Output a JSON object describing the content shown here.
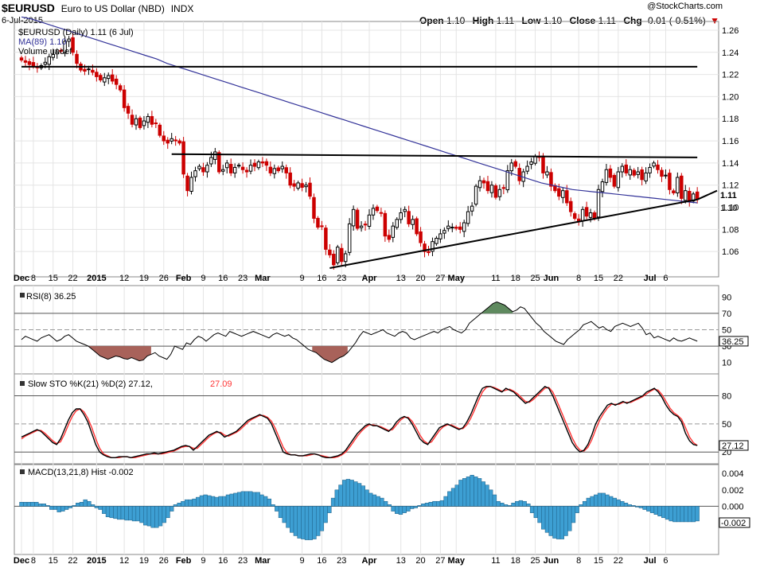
{
  "header": {
    "ticker": "$EURUSD",
    "description": "Euro to US Dollar (NBD)",
    "exchange": "INDX",
    "date": "6-Jul-2015",
    "brand": "@StockCharts.com",
    "open_label": "Open",
    "open_value": "1.10",
    "high_label": "High",
    "high_value": "1.11",
    "low_label": "Low",
    "low_value": "1.10",
    "close_label": "Close",
    "close_value": "1.11",
    "chg_label": "Chg",
    "chg_value": "-0.01 (-0.51%)",
    "chg_arrow": "▼"
  },
  "colors": {
    "up_candle": "#000000",
    "down_candle": "#cc0000",
    "ma_line": "#333399",
    "rsi_high_fill": "#5f8a5f",
    "rsi_low_fill": "#a8625a",
    "sto_d_line": "#ff3333",
    "macd_hist": "#3d9fd3"
  },
  "chart_data": [
    {
      "panel": "price",
      "type": "candlestick",
      "legend": [
        "$EURUSD (Daily) 1.11 (6 Jul)",
        "MA(89) 1.10",
        "Volume undef"
      ],
      "ylim": [
        1.04,
        1.265
      ],
      "yticks": [
        "1.26",
        "1.24",
        "1.22",
        "1.20",
        "1.18",
        "1.16",
        "1.14",
        "1.12",
        "1.10",
        "1.08",
        "1.06"
      ],
      "last_labels": [
        "1.11",
        "1.10"
      ],
      "close": [
        1.233,
        1.231,
        1.229,
        1.228,
        1.226,
        1.228,
        1.231,
        1.236,
        1.238,
        1.24,
        1.241,
        1.25,
        1.252,
        1.24,
        1.23,
        1.224,
        1.223,
        1.225,
        1.222,
        1.218,
        1.215,
        1.217,
        1.219,
        1.214,
        1.211,
        1.206,
        1.19,
        1.185,
        1.175,
        1.18,
        1.172,
        1.178,
        1.182,
        1.175,
        1.176,
        1.165,
        1.16,
        1.158,
        1.162,
        1.16,
        1.158,
        1.13,
        1.115,
        1.127,
        1.133,
        1.137,
        1.132,
        1.138,
        1.145,
        1.15,
        1.132,
        1.134,
        1.14,
        1.131,
        1.136,
        1.138,
        1.134,
        1.132,
        1.138,
        1.137,
        1.141,
        1.14,
        1.138,
        1.131,
        1.135,
        1.133,
        1.137,
        1.131,
        1.12,
        1.119,
        1.122,
        1.118,
        1.12,
        1.11,
        1.09,
        1.082,
        1.083,
        1.062,
        1.057,
        1.048,
        1.064,
        1.051,
        1.058,
        1.085,
        1.098,
        1.081,
        1.083,
        1.084,
        1.093,
        1.099,
        1.097,
        1.095,
        1.074,
        1.071,
        1.083,
        1.089,
        1.095,
        1.098,
        1.085,
        1.089,
        1.076,
        1.068,
        1.06,
        1.059,
        1.069,
        1.072,
        1.076,
        1.079,
        1.083,
        1.082,
        1.081,
        1.08,
        1.086,
        1.096,
        1.101,
        1.119,
        1.124,
        1.122,
        1.115,
        1.12,
        1.109,
        1.116,
        1.117,
        1.133,
        1.14,
        1.137,
        1.124,
        1.132,
        1.137,
        1.141,
        1.146,
        1.145,
        1.131,
        1.132,
        1.119,
        1.115,
        1.11,
        1.115,
        1.104,
        1.096,
        1.09,
        1.087,
        1.098,
        1.092,
        1.095,
        1.09,
        1.116,
        1.123,
        1.134,
        1.127,
        1.119,
        1.132,
        1.137,
        1.131,
        1.134,
        1.129,
        1.132,
        1.125,
        1.131,
        1.136,
        1.14,
        1.134,
        1.128,
        1.129,
        1.116,
        1.113,
        1.127,
        1.108,
        1.115,
        1.105,
        1.112,
        1.107
      ],
      "ma89": [
        1.272,
        1.27,
        1.267,
        1.264,
        1.261,
        1.258,
        1.255,
        1.252,
        1.249,
        1.246,
        1.243,
        1.24,
        1.237,
        1.234,
        1.23,
        1.227,
        1.224,
        1.221,
        1.218,
        1.215,
        1.212,
        1.209,
        1.206,
        1.203,
        1.2,
        1.197,
        1.194,
        1.191,
        1.188,
        1.185,
        1.182,
        1.179,
        1.176,
        1.173,
        1.17,
        1.167,
        1.164,
        1.161,
        1.158,
        1.155,
        1.152,
        1.149,
        1.146,
        1.143,
        1.14,
        1.137,
        1.134,
        1.131,
        1.128,
        1.125,
        1.122,
        1.12,
        1.118,
        1.116,
        1.115,
        1.114,
        1.113,
        1.112,
        1.111,
        1.11,
        1.109,
        1.108,
        1.107,
        1.106,
        1.105,
        1.104
      ],
      "trendlines": [
        {
          "from": [
            0,
            1.227
          ],
          "to": [
            171,
            1.227
          ]
        },
        {
          "from": [
            38,
            1.148
          ],
          "to": [
            171,
            1.145
          ]
        },
        {
          "from": [
            78,
            1.045
          ],
          "to": [
            171,
            1.107
          ]
        },
        {
          "from": [
            171,
            1.107
          ],
          "to": [
            176,
            1.115
          ]
        }
      ]
    },
    {
      "panel": "rsi",
      "type": "line",
      "legend": "RSI(8) 36.25",
      "ylim": [
        0,
        100
      ],
      "yticks": [
        "90",
        "70",
        "50",
        "30",
        "10"
      ],
      "reference_lines": [
        70,
        50,
        30
      ],
      "last_label": "36.25",
      "values": [
        38,
        42,
        40,
        38,
        36,
        40,
        42,
        44,
        40,
        36,
        38,
        42,
        44,
        40,
        36,
        34,
        32,
        30,
        26,
        22,
        18,
        16,
        14,
        16,
        18,
        17,
        15,
        14,
        16,
        14,
        12,
        13,
        18,
        20,
        22,
        18,
        16,
        14,
        20,
        30,
        28,
        26,
        34,
        32,
        38,
        42,
        40,
        36,
        40,
        44,
        46,
        44,
        42,
        48,
        46,
        44,
        42,
        44,
        46,
        48,
        46,
        44,
        42,
        40,
        44,
        46,
        44,
        42,
        44,
        40,
        38,
        34,
        30,
        26,
        24,
        22,
        18,
        14,
        12,
        10,
        13,
        16,
        18,
        22,
        28,
        34,
        42,
        48,
        46,
        44,
        46,
        48,
        50,
        46,
        44,
        42,
        46,
        48,
        46,
        40,
        38,
        40,
        42,
        44,
        46,
        48,
        46,
        50,
        52,
        54,
        50,
        48,
        46,
        50,
        58,
        62,
        66,
        70,
        74,
        78,
        82,
        84,
        82,
        80,
        76,
        72,
        74,
        78,
        76,
        70,
        64,
        58,
        54,
        48,
        44,
        40,
        36,
        34,
        32,
        38,
        42,
        46,
        50,
        56,
        58,
        60,
        56,
        52,
        54,
        50,
        48,
        54,
        56,
        58,
        56,
        54,
        56,
        58,
        52,
        44,
        46,
        40,
        42,
        40,
        38,
        36,
        40,
        37,
        36,
        38,
        40,
        38,
        36
      ],
      "fills": [
        {
          "from": 15,
          "to": 33,
          "side": "below",
          "level": 30
        },
        {
          "from": 74,
          "to": 83,
          "side": "below",
          "level": 30
        },
        {
          "from": 117,
          "to": 125,
          "side": "above",
          "level": 70
        }
      ]
    },
    {
      "panel": "stochastic",
      "type": "line",
      "legend": "Slow STO %K(21) %D(2) 27.12, 27.09",
      "legend_k": "Slow STO %K(21) %D(2) 27.12,",
      "legend_d": "27.09",
      "ylim": [
        10,
        100
      ],
      "yticks": [
        "80",
        "50",
        "20"
      ],
      "reference_lines": [
        80,
        50,
        20
      ],
      "last_label": "27.12",
      "k": [
        36,
        38,
        40,
        42,
        44,
        42,
        38,
        34,
        30,
        28,
        34,
        44,
        54,
        62,
        66,
        66,
        60,
        52,
        40,
        28,
        20,
        17,
        15,
        14,
        14,
        15,
        15,
        15,
        14,
        15,
        16,
        17,
        18,
        18,
        19,
        18,
        19,
        20,
        21,
        22,
        24,
        26,
        27,
        26,
        22,
        26,
        30,
        34,
        38,
        40,
        42,
        40,
        36,
        38,
        40,
        42,
        46,
        50,
        54,
        56,
        58,
        60,
        58,
        56,
        50,
        40,
        30,
        20,
        18,
        17,
        17,
        16,
        16,
        17,
        18,
        18,
        17,
        15,
        14,
        14,
        15,
        16,
        18,
        22,
        28,
        34,
        40,
        44,
        48,
        50,
        48,
        48,
        46,
        44,
        42,
        46,
        52,
        56,
        58,
        56,
        50,
        42,
        34,
        30,
        28,
        34,
        40,
        46,
        48,
        50,
        48,
        46,
        44,
        46,
        52,
        60,
        70,
        80,
        88,
        90,
        90,
        88,
        86,
        84,
        88,
        86,
        84,
        80,
        76,
        72,
        74,
        78,
        82,
        86,
        90,
        88,
        80,
        70,
        60,
        50,
        40,
        30,
        24,
        20,
        22,
        28,
        38,
        50,
        58,
        64,
        70,
        72,
        70,
        72,
        74,
        72,
        74,
        76,
        78,
        80,
        84,
        86,
        88,
        84,
        78,
        70,
        64,
        60,
        58,
        52,
        40,
        32,
        28,
        27
      ],
      "d": [
        34,
        37,
        39,
        41,
        43,
        43,
        40,
        36,
        32,
        29,
        31,
        39,
        49,
        58,
        64,
        66,
        63,
        56,
        46,
        34,
        24,
        18,
        16,
        14,
        14,
        14,
        15,
        15,
        14,
        14,
        15,
        16,
        17,
        18,
        18,
        18,
        18,
        19,
        20,
        21,
        23,
        25,
        26,
        26,
        24,
        24,
        28,
        32,
        36,
        39,
        41,
        41,
        38,
        37,
        39,
        41,
        44,
        48,
        52,
        55,
        57,
        59,
        59,
        57,
        53,
        45,
        35,
        25,
        19,
        17,
        17,
        16,
        16,
        16,
        17,
        18,
        17,
        16,
        15,
        14,
        14,
        15,
        17,
        20,
        25,
        31,
        37,
        42,
        46,
        49,
        49,
        48,
        47,
        45,
        43,
        44,
        49,
        54,
        57,
        57,
        53,
        46,
        38,
        32,
        29,
        31,
        37,
        43,
        47,
        49,
        49,
        47,
        45,
        45,
        49,
        56,
        65,
        75,
        84,
        89,
        90,
        89,
        87,
        85,
        86,
        87,
        85,
        82,
        78,
        74,
        73,
        76,
        80,
        84,
        88,
        89,
        84,
        75,
        65,
        55,
        45,
        35,
        27,
        22,
        21,
        25,
        33,
        44,
        54,
        61,
        67,
        71,
        71,
        71,
        73,
        73,
        73,
        75,
        77,
        79,
        82,
        85,
        87,
        86,
        81,
        74,
        67,
        62,
        59,
        55,
        46,
        36,
        30,
        27
      ]
    },
    {
      "panel": "macd",
      "type": "bar",
      "legend": "MACD(13,21,8) Hist -0.002",
      "ylim": [
        -0.0055,
        0.0048
      ],
      "yticks": [
        "0.004",
        "0.002",
        "0.000",
        "-0.002"
      ],
      "last_label": "-0.002",
      "hist": [
        0.0005,
        0.0005,
        0.0005,
        0.0005,
        0.0005,
        0.0003,
        0.0003,
        0.0001,
        -0.0004,
        -0.0004,
        -0.0007,
        -0.0006,
        -0.0004,
        -0.0002,
        0.0001,
        0.0004,
        0.0005,
        0.0008,
        0.0006,
        0.0002,
        -0.0002,
        -0.0004,
        -0.0009,
        -0.0013,
        -0.0014,
        -0.0015,
        -0.0016,
        -0.0016,
        -0.0017,
        -0.0017,
        -0.0018,
        -0.0018,
        -0.002,
        -0.0023,
        -0.0024,
        -0.0026,
        -0.0026,
        -0.0024,
        -0.002,
        -0.0014,
        -0.0006,
        0.0002,
        0.0004,
        0.0006,
        0.0008,
        0.0008,
        0.0009,
        0.0011,
        0.0013,
        0.0014,
        0.0013,
        0.0012,
        0.0011,
        0.0012,
        0.0012,
        0.0014,
        0.0015,
        0.0016,
        0.0017,
        0.0018,
        0.0018,
        0.0018,
        0.0017,
        0.0017,
        0.0014,
        0.0012,
        0.0009,
        0.0002,
        -0.0006,
        -0.0014,
        -0.002,
        -0.0026,
        -0.0032,
        -0.0036,
        -0.0039,
        -0.004,
        -0.0041,
        -0.0041,
        -0.004,
        -0.0036,
        -0.003,
        -0.002,
        -0.0008,
        0.001,
        0.002,
        0.0026,
        0.0032,
        0.0033,
        0.0032,
        0.003,
        0.0028,
        0.0025,
        0.002,
        0.0016,
        0.0014,
        0.0012,
        0.001,
        0.0006,
        0.0002,
        -0.0006,
        -0.0009,
        -0.001,
        -0.0008,
        -0.0006,
        -0.0003,
        -0.0002,
        0.0001,
        0.0003,
        0.0004,
        0.0005,
        0.0006,
        0.0006,
        0.0007,
        0.0012,
        0.0018,
        0.0022,
        0.0026,
        0.0032,
        0.0034,
        0.0036,
        0.0038,
        0.0036,
        0.0034,
        0.003,
        0.0026,
        0.002,
        0.0014,
        0.0006,
        0.0004,
        0.0002,
        0.0001,
        0.0004,
        0.0006,
        0.0007,
        0.0006,
        0.0003,
        -0.0008,
        -0.0014,
        -0.002,
        -0.0028,
        -0.0032,
        -0.0036,
        -0.0039,
        -0.004,
        -0.004,
        -0.0036,
        -0.003,
        -0.002,
        -0.0008,
        0.0002,
        0.0006,
        0.001,
        0.0012,
        0.0014,
        0.0016,
        0.0016,
        0.0014,
        0.0012,
        0.001,
        0.0008,
        0.0006,
        0.0004,
        0.0002,
        0.0001,
        0.0,
        -0.0002,
        -0.0004,
        -0.0006,
        -0.0008,
        -0.001,
        -0.0012,
        -0.0014,
        -0.0016,
        -0.0018,
        -0.0019,
        -0.0019,
        -0.0019,
        -0.0019,
        -0.0019,
        -0.0019,
        -0.0018
      ]
    }
  ],
  "x_axis": {
    "labels": [
      {
        "text": "Dec",
        "i": 0,
        "bold": true
      },
      {
        "text": "8",
        "i": 3
      },
      {
        "text": "15",
        "i": 8
      },
      {
        "text": "22",
        "i": 13
      },
      {
        "text": "2015",
        "i": 19,
        "bold": true
      },
      {
        "text": "12",
        "i": 26
      },
      {
        "text": "19",
        "i": 31
      },
      {
        "text": "26",
        "i": 36
      },
      {
        "text": "Feb",
        "i": 41,
        "bold": true
      },
      {
        "text": "9",
        "i": 46
      },
      {
        "text": "16",
        "i": 51
      },
      {
        "text": "23",
        "i": 56
      },
      {
        "text": "Mar",
        "i": 61,
        "bold": true
      },
      {
        "text": "9",
        "i": 71
      },
      {
        "text": "16",
        "i": 76
      },
      {
        "text": "23",
        "i": 81
      },
      {
        "text": "Apr",
        "i": 88,
        "bold": true
      },
      {
        "text": "13",
        "i": 96
      },
      {
        "text": "20",
        "i": 101
      },
      {
        "text": "27",
        "i": 106
      },
      {
        "text": "May",
        "i": 110,
        "bold": true
      },
      {
        "text": "11",
        "i": 120
      },
      {
        "text": "18",
        "i": 125
      },
      {
        "text": "25",
        "i": 130
      },
      {
        "text": "Jun",
        "i": 134,
        "bold": true
      },
      {
        "text": "8",
        "i": 141
      },
      {
        "text": "15",
        "i": 146
      },
      {
        "text": "22",
        "i": 151
      },
      {
        "text": "Jul",
        "i": 159,
        "bold": true
      },
      {
        "text": "6",
        "i": 163
      }
    ]
  }
}
